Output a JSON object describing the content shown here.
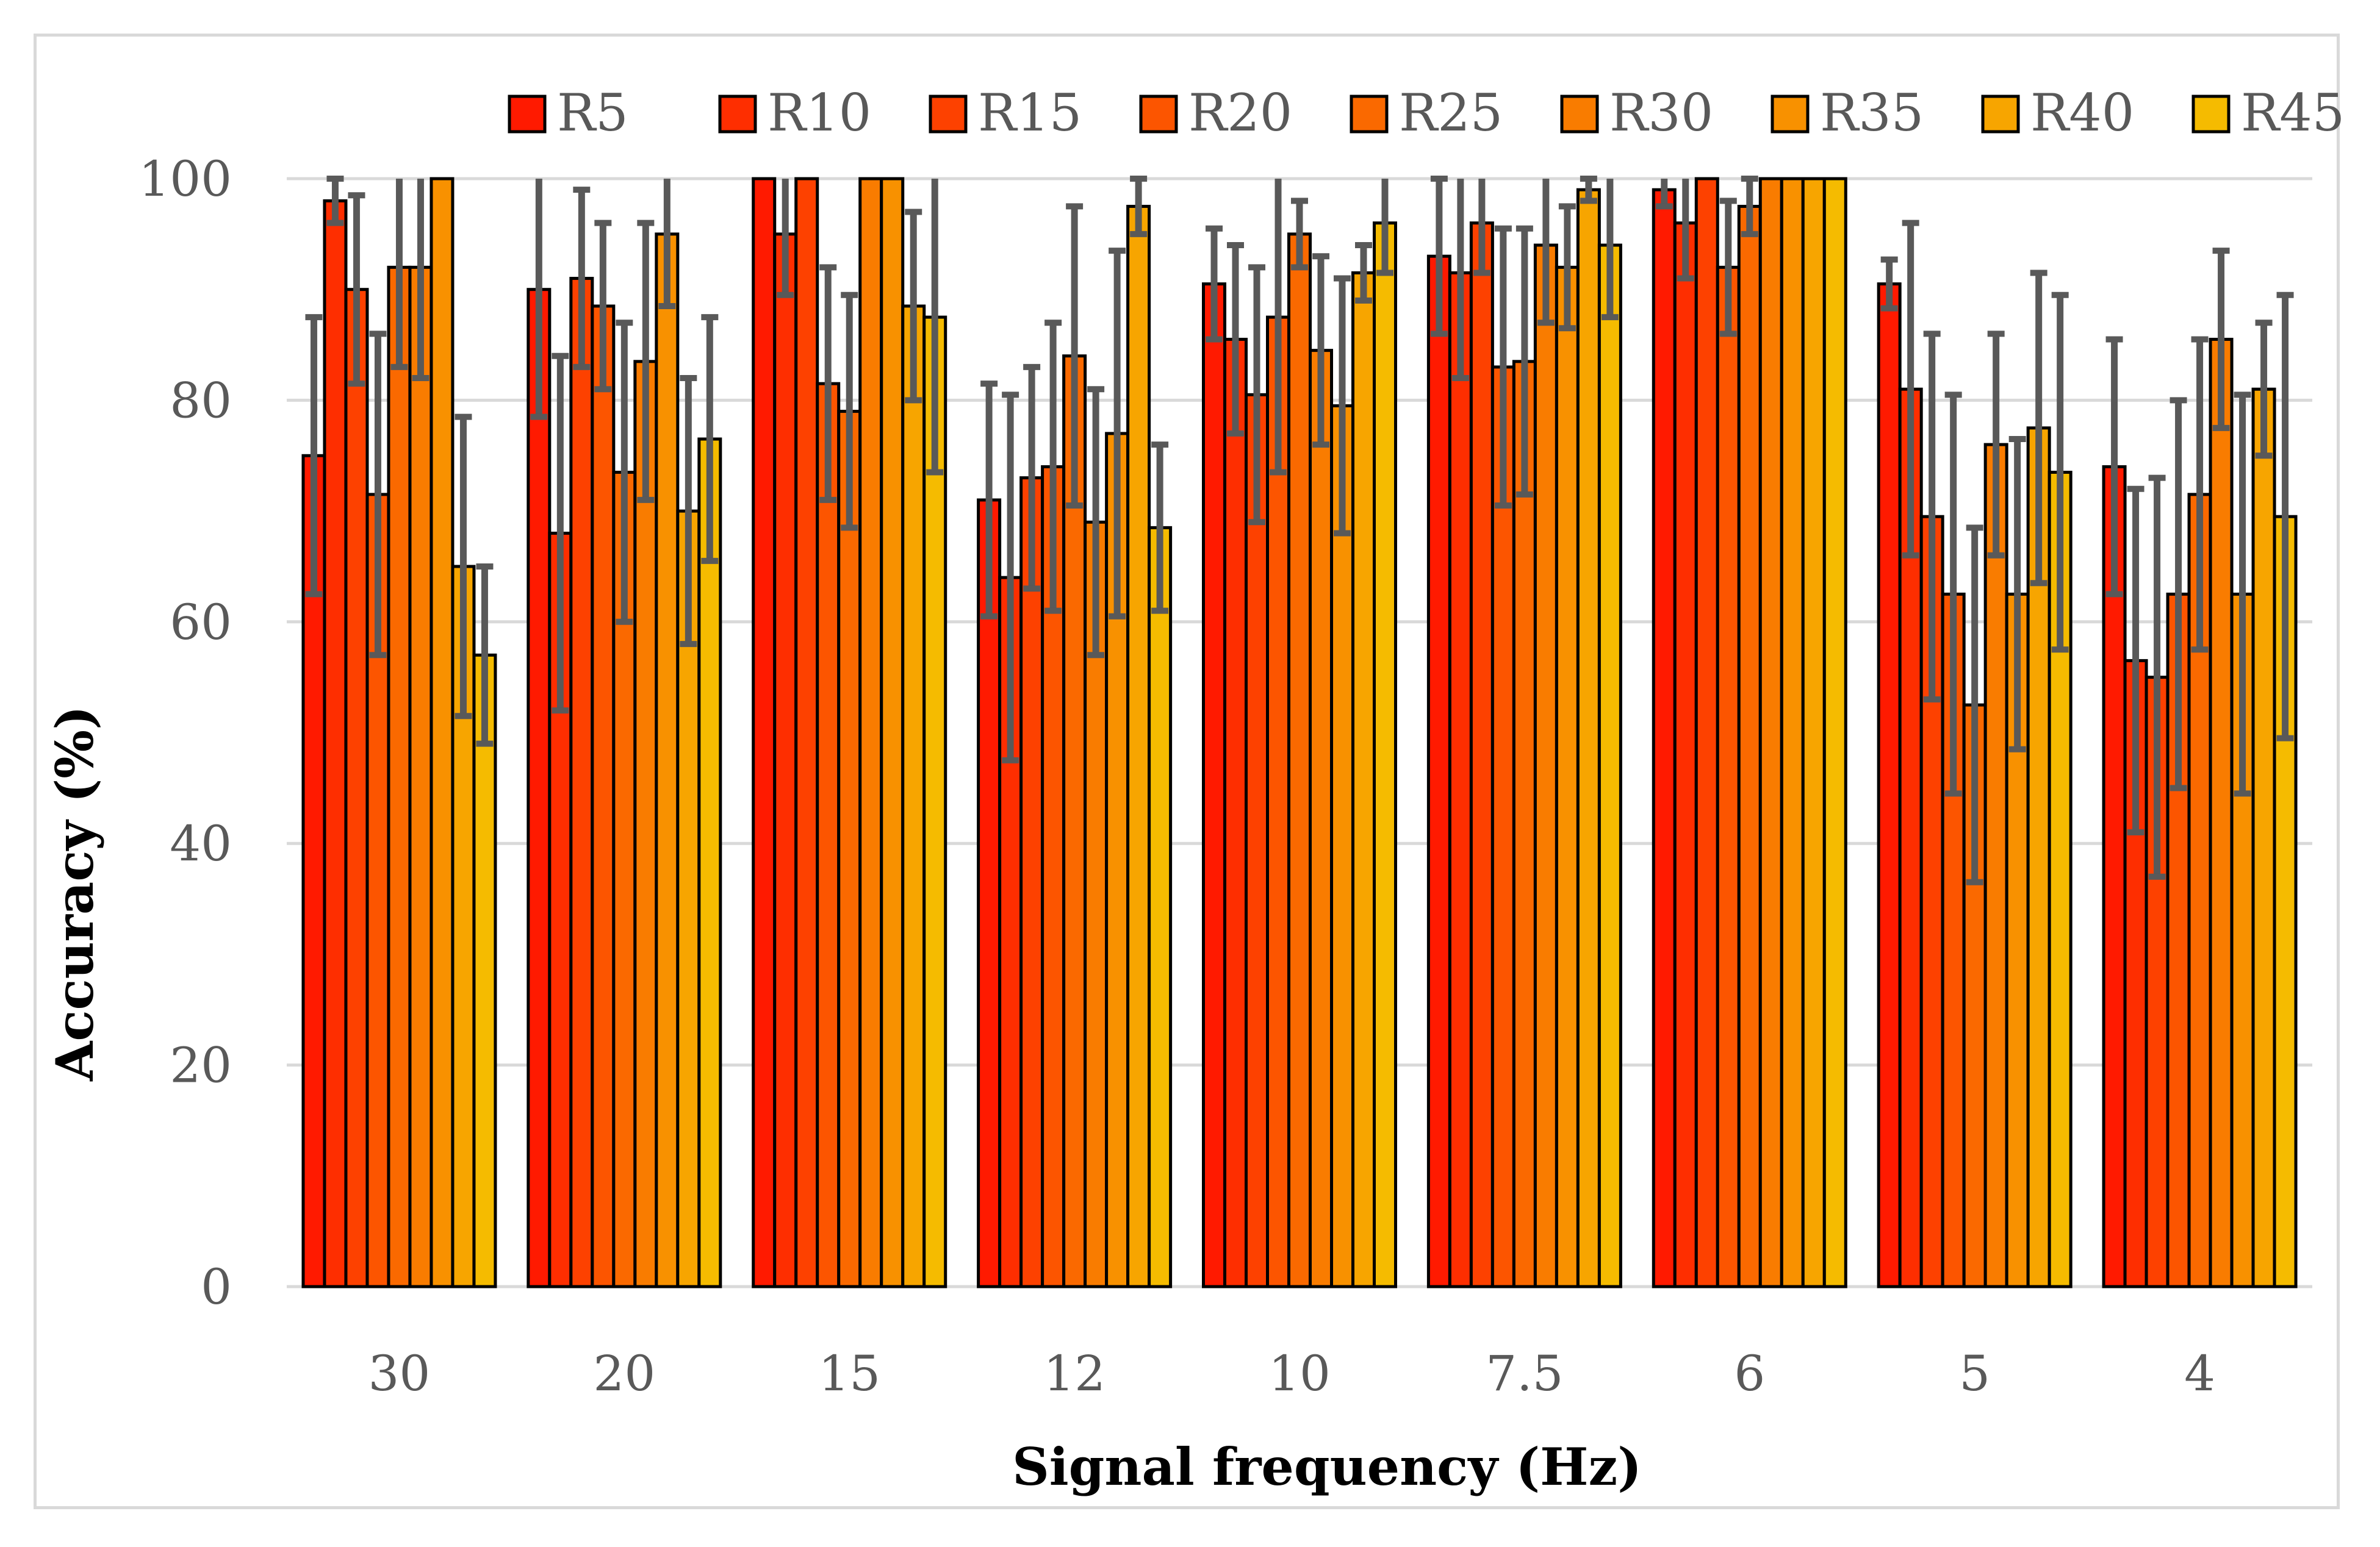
{
  "chart_data": {
    "type": "bar",
    "title": "",
    "xlabel": "Signal frequency (Hz)",
    "ylabel": "Accuracy (%)",
    "ylim": [
      0,
      100
    ],
    "yticks": [
      0,
      20,
      40,
      60,
      80,
      100
    ],
    "grid": true,
    "legend_position": "top-right",
    "error_bars": true,
    "categories": [
      "30",
      "20",
      "15",
      "12",
      "10",
      "7.5",
      "6",
      "5",
      "4"
    ],
    "series": [
      {
        "name": "R5",
        "color": "#ff1a00",
        "values": [
          75,
          90,
          100,
          71,
          90.5,
          93,
          99,
          90.5,
          74
        ],
        "errors": [
          12.5,
          11.5,
          0,
          10.5,
          5,
          7,
          1.5,
          2.2,
          11.5
        ]
      },
      {
        "name": "R10",
        "color": "#fe2e00",
        "values": [
          98,
          68,
          95,
          64,
          85.5,
          91.5,
          96,
          81,
          56.5
        ],
        "errors": [
          2,
          16,
          5.5,
          16.5,
          8.5,
          9.5,
          5,
          15,
          15.5
        ]
      },
      {
        "name": "R15",
        "color": "#fd4100",
        "values": [
          90,
          91,
          100,
          73,
          80.5,
          96,
          100,
          69.5,
          55
        ],
        "errors": [
          8.5,
          8,
          0,
          10,
          11.5,
          4.5,
          0,
          16.5,
          18
        ]
      },
      {
        "name": "R20",
        "color": "#fc5500",
        "values": [
          71.5,
          88.5,
          81.5,
          74,
          87.5,
          83,
          92,
          62.5,
          62.5
        ],
        "errors": [
          14.5,
          7.5,
          10.5,
          13,
          14,
          12.5,
          6,
          18,
          17.5
        ]
      },
      {
        "name": "R25",
        "color": "#fa6900",
        "values": [
          92,
          73.5,
          79,
          84,
          95,
          83.5,
          97.5,
          52.5,
          71.5
        ],
        "errors": [
          9,
          13.5,
          10.5,
          13.5,
          3,
          12,
          2.5,
          16,
          14
        ]
      },
      {
        "name": "R30",
        "color": "#f97c00",
        "values": [
          92,
          83.5,
          100,
          69,
          84.5,
          94,
          100,
          76,
          85.5
        ],
        "errors": [
          10,
          12.5,
          0,
          12,
          8.5,
          7,
          0,
          10,
          8
        ]
      },
      {
        "name": "R35",
        "color": "#f89100",
        "values": [
          100,
          95,
          100,
          77,
          79.5,
          92,
          100,
          62.5,
          62.5
        ],
        "errors": [
          0,
          6.5,
          0,
          16.5,
          11.5,
          5.5,
          0,
          14,
          18
        ]
      },
      {
        "name": "R40",
        "color": "#f7a500",
        "values": [
          65,
          70,
          88.5,
          97.5,
          91.5,
          99,
          100,
          77.5,
          81
        ],
        "errors": [
          13.5,
          12,
          8.5,
          2.5,
          2.5,
          1,
          0,
          14,
          6
        ]
      },
      {
        "name": "R45",
        "color": "#f5bb00",
        "values": [
          57,
          76.5,
          87.5,
          68.5,
          96,
          94,
          100,
          73.5,
          69.5
        ],
        "errors": [
          8,
          11,
          14,
          7.5,
          4.5,
          6.5,
          0,
          16,
          20
        ]
      }
    ]
  }
}
